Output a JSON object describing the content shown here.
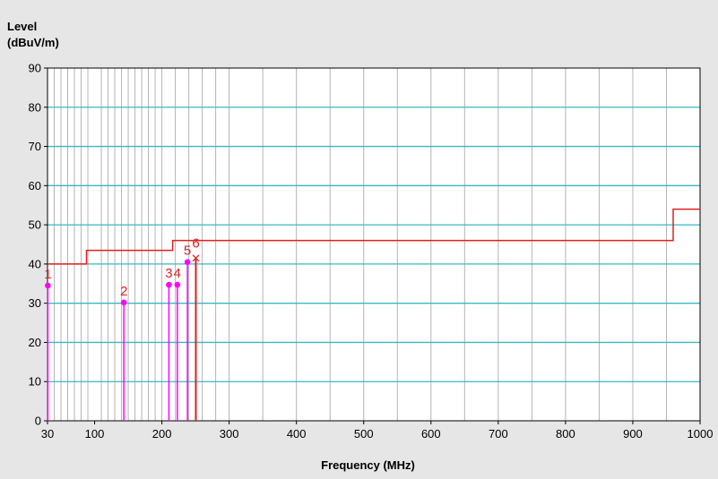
{
  "chart_data": {
    "type": "line",
    "ylabel": [
      "Level",
      "(dBuV/m)"
    ],
    "xlabel": "Frequency (MHz)",
    "xlim": [
      30,
      1000
    ],
    "ylim": [
      0,
      90
    ],
    "xticks": [
      30,
      100,
      200,
      300,
      400,
      500,
      600,
      700,
      800,
      900,
      1000
    ],
    "yticks": [
      0,
      10,
      20,
      30,
      40,
      50,
      60,
      70,
      80,
      90
    ],
    "grid": true,
    "colors": {
      "background": "#ffffff",
      "major_grid": "#38b8c0",
      "minor_grid": "#b4b4b4",
      "limit": "#e02020",
      "marker": "#ff00ff",
      "frame": "#000000"
    },
    "limit_line": {
      "x": [
        30,
        88,
        88,
        216,
        216,
        960,
        960,
        1000
      ],
      "y": [
        40,
        40,
        43.5,
        43.5,
        46,
        46,
        54,
        54
      ]
    },
    "markers": [
      {
        "label": "1",
        "x": 30.5,
        "y": 34.5,
        "symbol": "dot"
      },
      {
        "label": "2",
        "x": 143.5,
        "y": 30.2,
        "symbol": "dot"
      },
      {
        "label": "3",
        "x": 210.5,
        "y": 34.7,
        "symbol": "dot"
      },
      {
        "label": "4",
        "x": 223.0,
        "y": 34.7,
        "symbol": "dot"
      },
      {
        "label": "5",
        "x": 238.0,
        "y": 40.5,
        "symbol": "dot"
      },
      {
        "label": "6",
        "x": 250.5,
        "y": 41.5,
        "symbol": "cross"
      }
    ]
  }
}
